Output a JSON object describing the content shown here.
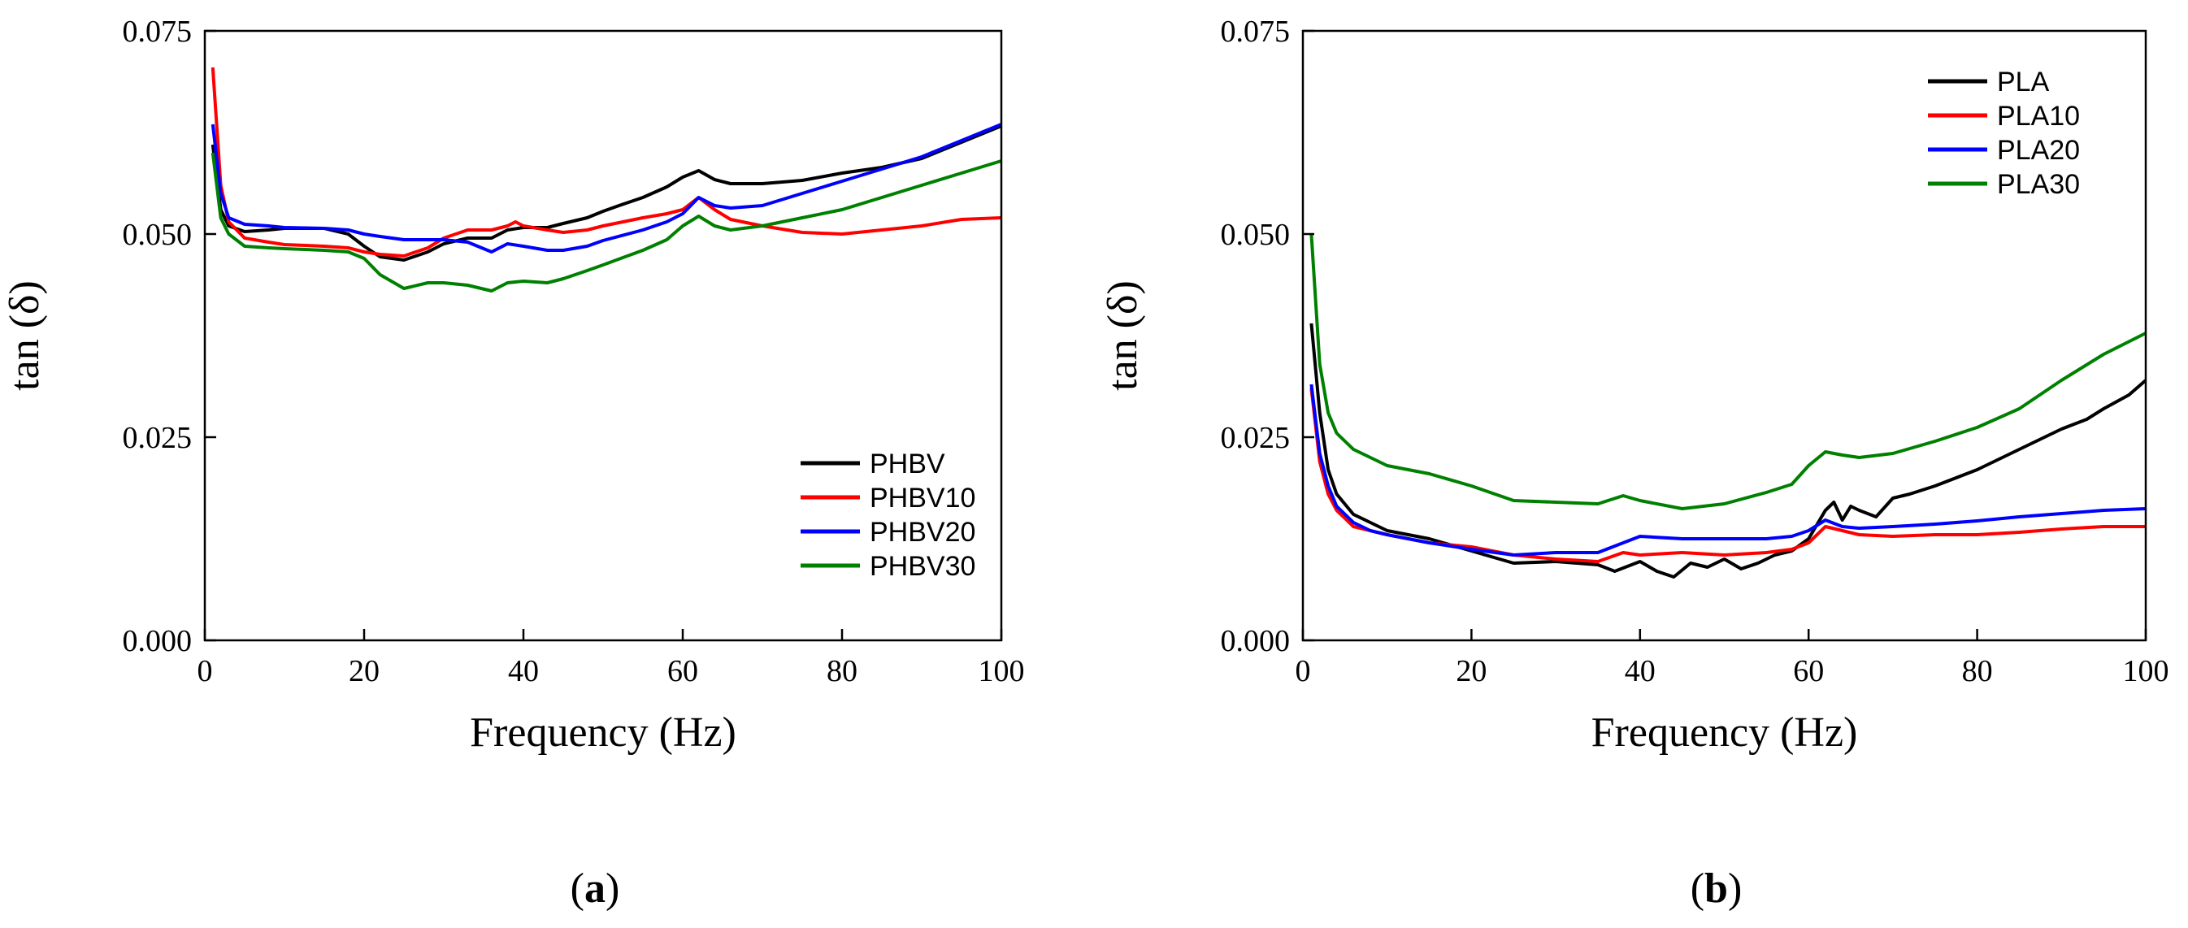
{
  "chart_data": [
    {
      "type": "line",
      "panel_label": "a",
      "panel_label_text": {
        "open": "(",
        "letter": "a",
        "close": ")"
      },
      "xlabel": "Frequency (Hz)",
      "ylabel": "tan (δ)",
      "xlim": [
        0,
        100
      ],
      "ylim": [
        0,
        0.075
      ],
      "xticks": [
        0,
        20,
        40,
        60,
        80,
        100
      ],
      "xtick_labels": [
        "0",
        "20",
        "40",
        "60",
        "80",
        "100"
      ],
      "yticks": [
        0,
        0.025,
        0.05,
        0.075
      ],
      "ytick_labels": [
        "0.000",
        "0.025",
        "0.050",
        "0.075"
      ],
      "grid": false,
      "legend_position": "bottom-right",
      "series": [
        {
          "name": "PHBV",
          "color": "#000000",
          "x": [
            1,
            2,
            3,
            5,
            8,
            10,
            15,
            18,
            20,
            22,
            25,
            28,
            30,
            33,
            36,
            38,
            40,
            43,
            45,
            48,
            50,
            52,
            55,
            58,
            60,
            62,
            64,
            66,
            70,
            75,
            80,
            85,
            90,
            95,
            100
          ],
          "y": [
            0.061,
            0.053,
            0.051,
            0.0503,
            0.0505,
            0.0507,
            0.0507,
            0.05,
            0.0485,
            0.0472,
            0.0468,
            0.0478,
            0.0488,
            0.0495,
            0.0495,
            0.0505,
            0.0508,
            0.0508,
            0.0513,
            0.052,
            0.0528,
            0.0535,
            0.0545,
            0.0558,
            0.057,
            0.0578,
            0.0567,
            0.0562,
            0.0562,
            0.0566,
            0.0575,
            0.0582,
            0.0593,
            0.0613,
            0.0633
          ]
        },
        {
          "name": "PHBV10",
          "color": "#ff0000",
          "x": [
            1,
            2,
            3,
            5,
            8,
            10,
            15,
            18,
            20,
            22,
            25,
            28,
            30,
            33,
            36,
            38,
            39,
            40,
            43,
            45,
            48,
            50,
            55,
            58,
            60,
            62,
            64,
            66,
            70,
            75,
            80,
            85,
            90,
            95,
            100
          ],
          "y": [
            0.0705,
            0.056,
            0.0515,
            0.0495,
            0.049,
            0.0487,
            0.0485,
            0.0483,
            0.0478,
            0.0475,
            0.0473,
            0.0483,
            0.0495,
            0.0505,
            0.0505,
            0.051,
            0.0515,
            0.051,
            0.0505,
            0.0502,
            0.0505,
            0.051,
            0.052,
            0.0525,
            0.053,
            0.0545,
            0.053,
            0.0518,
            0.051,
            0.0502,
            0.05,
            0.0505,
            0.051,
            0.0518,
            0.052
          ]
        },
        {
          "name": "PHBV20",
          "color": "#0000ff",
          "x": [
            1,
            2,
            3,
            5,
            8,
            10,
            15,
            18,
            20,
            22,
            25,
            28,
            30,
            33,
            36,
            38,
            40,
            43,
            45,
            48,
            50,
            55,
            58,
            60,
            62,
            64,
            66,
            70,
            75,
            80,
            85,
            90,
            95,
            100
          ],
          "y": [
            0.0635,
            0.055,
            0.052,
            0.0512,
            0.051,
            0.0508,
            0.0507,
            0.0505,
            0.05,
            0.0497,
            0.0493,
            0.0493,
            0.0493,
            0.049,
            0.0478,
            0.0488,
            0.0485,
            0.048,
            0.048,
            0.0485,
            0.0492,
            0.0505,
            0.0515,
            0.0525,
            0.0545,
            0.0535,
            0.0532,
            0.0535,
            0.055,
            0.0565,
            0.058,
            0.0595,
            0.0615,
            0.0635
          ]
        },
        {
          "name": "PHBV30",
          "color": "#008000",
          "x": [
            1,
            2,
            3,
            5,
            8,
            10,
            15,
            18,
            20,
            22,
            25,
            28,
            30,
            33,
            36,
            38,
            40,
            43,
            45,
            48,
            50,
            55,
            58,
            60,
            62,
            64,
            66,
            70,
            75,
            80,
            85,
            90,
            95,
            100
          ],
          "y": [
            0.06,
            0.052,
            0.05,
            0.0485,
            0.0483,
            0.0482,
            0.048,
            0.0478,
            0.047,
            0.045,
            0.0433,
            0.044,
            0.044,
            0.0437,
            0.043,
            0.044,
            0.0442,
            0.044,
            0.0445,
            0.0455,
            0.0462,
            0.048,
            0.0493,
            0.051,
            0.0522,
            0.051,
            0.0505,
            0.051,
            0.052,
            0.053,
            0.0545,
            0.056,
            0.0575,
            0.059
          ]
        }
      ]
    },
    {
      "type": "line",
      "panel_label": "b",
      "panel_label_text": {
        "open": "(",
        "letter": "b",
        "close": ")"
      },
      "xlabel": "Frequency (Hz)",
      "ylabel": "tan (δ)",
      "xlim": [
        0,
        100
      ],
      "ylim": [
        0,
        0.075
      ],
      "xticks": [
        0,
        20,
        40,
        60,
        80,
        100
      ],
      "xtick_labels": [
        "0",
        "20",
        "40",
        "60",
        "80",
        "100"
      ],
      "yticks": [
        0,
        0.025,
        0.05,
        0.075
      ],
      "ytick_labels": [
        "0.000",
        "0.025",
        "0.050",
        "0.075"
      ],
      "grid": false,
      "legend_position": "top-right",
      "series": [
        {
          "name": "PLA",
          "color": "#000000",
          "x": [
            1,
            2,
            3,
            4,
            6,
            8,
            10,
            15,
            20,
            25,
            30,
            35,
            37,
            40,
            42,
            44,
            46,
            48,
            50,
            52,
            54,
            56,
            58,
            60,
            62,
            63,
            64,
            65,
            66,
            68,
            70,
            72,
            75,
            80,
            85,
            90,
            93,
            95,
            98,
            100
          ],
          "y": [
            0.039,
            0.028,
            0.021,
            0.018,
            0.0155,
            0.0145,
            0.0135,
            0.0125,
            0.011,
            0.0095,
            0.0097,
            0.0093,
            0.0085,
            0.0097,
            0.0085,
            0.0078,
            0.0095,
            0.009,
            0.01,
            0.0088,
            0.0095,
            0.0105,
            0.011,
            0.0125,
            0.016,
            0.017,
            0.0148,
            0.0165,
            0.016,
            0.0152,
            0.0175,
            0.018,
            0.019,
            0.021,
            0.0235,
            0.026,
            0.0272,
            0.0285,
            0.0302,
            0.032
          ]
        },
        {
          "name": "PLA10",
          "color": "#ff0000",
          "x": [
            1,
            2,
            3,
            4,
            6,
            8,
            10,
            15,
            20,
            25,
            30,
            35,
            38,
            40,
            45,
            50,
            55,
            58,
            60,
            62,
            64,
            66,
            70,
            75,
            80,
            85,
            90,
            95,
            100
          ],
          "y": [
            0.031,
            0.022,
            0.018,
            0.016,
            0.014,
            0.0135,
            0.013,
            0.012,
            0.0115,
            0.0105,
            0.01,
            0.0097,
            0.0108,
            0.0105,
            0.0108,
            0.0105,
            0.0108,
            0.0112,
            0.012,
            0.014,
            0.0135,
            0.013,
            0.0128,
            0.013,
            0.013,
            0.0133,
            0.0137,
            0.014,
            0.014
          ]
        },
        {
          "name": "PLA20",
          "color": "#0000ff",
          "x": [
            1,
            2,
            3,
            4,
            6,
            8,
            10,
            15,
            20,
            25,
            30,
            35,
            38,
            40,
            45,
            50,
            55,
            58,
            60,
            62,
            64,
            66,
            70,
            75,
            80,
            85,
            90,
            95,
            100
          ],
          "y": [
            0.0315,
            0.023,
            0.019,
            0.0165,
            0.0145,
            0.0135,
            0.013,
            0.012,
            0.0112,
            0.0105,
            0.0108,
            0.0108,
            0.012,
            0.0128,
            0.0125,
            0.0125,
            0.0125,
            0.0128,
            0.0135,
            0.0148,
            0.014,
            0.0138,
            0.014,
            0.0143,
            0.0147,
            0.0152,
            0.0156,
            0.016,
            0.0162
          ]
        },
        {
          "name": "PLA30",
          "color": "#008000",
          "x": [
            1,
            2,
            3,
            4,
            5,
            6,
            8,
            10,
            15,
            20,
            25,
            30,
            35,
            38,
            40,
            45,
            50,
            55,
            58,
            60,
            62,
            64,
            66,
            70,
            75,
            80,
            85,
            90,
            95,
            100
          ],
          "y": [
            0.05,
            0.034,
            0.028,
            0.0255,
            0.0245,
            0.0235,
            0.0225,
            0.0215,
            0.0205,
            0.019,
            0.0172,
            0.017,
            0.0168,
            0.0178,
            0.0172,
            0.0162,
            0.0168,
            0.0182,
            0.0192,
            0.0215,
            0.0232,
            0.0228,
            0.0225,
            0.023,
            0.0245,
            0.0262,
            0.0285,
            0.032,
            0.0352,
            0.0378
          ]
        }
      ]
    }
  ]
}
